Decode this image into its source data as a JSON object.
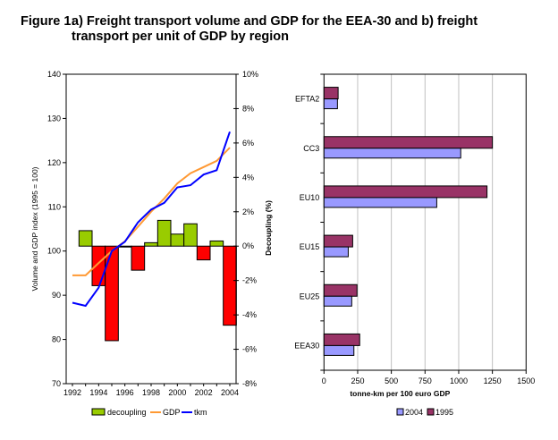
{
  "figure": {
    "number": "Figure 1:",
    "title": "a) Freight transport volume and GDP for the EEA-30 and b) freight transport per unit of GDP by region"
  },
  "colors": {
    "decoupling_pos": "#99CC00",
    "decoupling_neg": "#FF0000",
    "gdp": "#FF9933",
    "tkm": "#0000FF",
    "y2004": "#9999FF",
    "y1995": "#993366",
    "grid": "#C0C0C0"
  },
  "chart_data": [
    {
      "type": "bar+line",
      "panel": "a",
      "x": [
        1992,
        1993,
        1994,
        1995,
        1996,
        1997,
        1998,
        1999,
        2000,
        2001,
        2002,
        2003,
        2004
      ],
      "xticks": [
        "1992",
        "1994",
        "1996",
        "1998",
        "2000",
        "2002",
        "2004"
      ],
      "ylabel": "Volume and GDP index (1995 = 100)",
      "ylim": [
        70,
        140
      ],
      "yticks": [
        "70",
        "80",
        "90",
        "100",
        "110",
        "120",
        "130",
        "140"
      ],
      "y2label": "Decoupling (%)",
      "y2lim": [
        -8,
        10
      ],
      "y2ticks": [
        "-8%",
        "-6%",
        "-4%",
        "-2%",
        "0%",
        "2%",
        "4%",
        "6%",
        "8%",
        "10%"
      ],
      "series": [
        {
          "name": "decoupling",
          "kind": "bar",
          "axis": "right",
          "values": [
            null,
            0.9,
            -2.3,
            -5.5,
            0.0,
            -1.4,
            0.2,
            1.5,
            0.7,
            1.3,
            -0.8,
            0.3,
            -4.6
          ]
        },
        {
          "name": "GDP",
          "kind": "line",
          "axis": "left",
          "values": [
            94.5,
            94.5,
            97.3,
            100,
            102.2,
            105.5,
            108.9,
            111.9,
            115.3,
            117.6,
            119.0,
            120.4,
            123.4
          ]
        },
        {
          "name": "tkm",
          "kind": "line",
          "axis": "left",
          "values": [
            88.3,
            87.6,
            91.7,
            100,
            102.1,
            106.5,
            109.4,
            110.9,
            114.4,
            114.9,
            117.3,
            118.3,
            127.0
          ]
        }
      ],
      "legend": [
        "decoupling",
        "GDP",
        "tkm"
      ],
      "legend_position": "bottom"
    },
    {
      "type": "bar",
      "orientation": "horizontal",
      "panel": "b",
      "categories": [
        "EFTA2",
        "CC3",
        "EU10",
        "EU15",
        "EU25",
        "EEA30"
      ],
      "series": [
        {
          "name": "1995",
          "values": [
            105,
            1250,
            1210,
            213,
            245,
            265
          ]
        },
        {
          "name": "2004",
          "values": [
            100,
            1015,
            837,
            180,
            206,
            222
          ]
        }
      ],
      "xlabel": "tonne-km per 100 euro GDP",
      "xlim": [
        0,
        1500
      ],
      "xticks": [
        "0",
        "250",
        "500",
        "750",
        "1000",
        "1250",
        "1500"
      ],
      "grid": true,
      "legend": [
        "2004",
        "1995"
      ],
      "legend_position": "bottom"
    }
  ]
}
